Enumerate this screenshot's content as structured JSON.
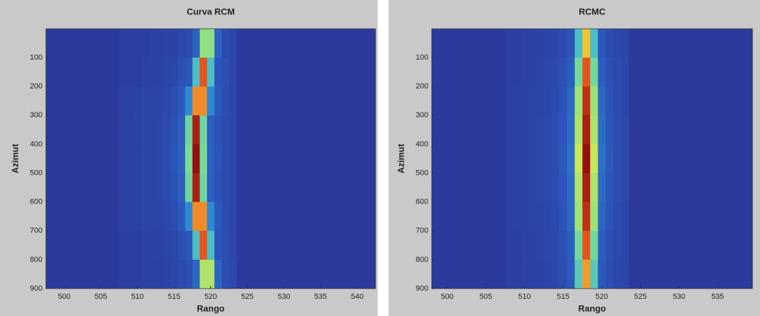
{
  "chart_data": [
    {
      "type": "heatmap",
      "title": "Curva RCM",
      "x_label": "Rango",
      "y_label": "Azimut",
      "xlim": [
        497.5,
        542.5
      ],
      "xticks": [
        500,
        505,
        510,
        515,
        520,
        525,
        530,
        535,
        540
      ],
      "ylim": [
        0,
        900
      ],
      "yticks": [
        100,
        200,
        300,
        400,
        500,
        600,
        700,
        800,
        900
      ],
      "y_inverted": true,
      "x": [
        508,
        509,
        510,
        511,
        512,
        513,
        514,
        515,
        516,
        517,
        518,
        519,
        520,
        521,
        522,
        523
      ],
      "y": [
        50,
        150,
        250,
        350,
        450,
        550,
        650,
        750,
        850
      ],
      "z": [
        [
          2,
          2,
          2,
          2,
          3,
          3,
          4,
          4,
          6,
          8,
          15,
          48,
          48,
          15,
          8,
          6
        ],
        [
          2,
          2,
          2,
          3,
          4,
          4,
          5,
          6,
          10,
          12,
          36,
          80,
          36,
          12,
          10,
          6
        ],
        [
          3,
          3,
          4,
          5,
          5,
          5,
          6,
          9,
          13,
          23,
          72,
          72,
          23,
          13,
          9,
          6
        ],
        [
          3,
          3,
          4,
          5,
          5,
          6,
          8,
          11,
          14,
          43,
          95,
          43,
          14,
          11,
          8,
          6
        ],
        [
          3,
          3,
          4,
          5,
          5,
          6,
          8,
          12,
          15,
          45,
          100,
          45,
          15,
          12,
          8,
          6
        ],
        [
          3,
          3,
          4,
          5,
          5,
          6,
          8,
          11,
          14,
          43,
          95,
          43,
          14,
          11,
          8,
          6
        ],
        [
          3,
          3,
          4,
          5,
          5,
          5,
          6,
          9,
          13,
          23,
          72,
          72,
          23,
          13,
          9,
          6
        ],
        [
          2,
          2,
          2,
          3,
          4,
          4,
          5,
          6,
          10,
          12,
          36,
          80,
          36,
          12,
          10,
          6
        ],
        [
          2,
          2,
          2,
          3,
          3,
          3,
          4,
          5,
          7,
          9,
          16,
          52,
          52,
          16,
          9,
          7
        ]
      ]
    },
    {
      "type": "heatmap",
      "title": "RCMC",
      "x_label": "Rango",
      "y_label": "Azimut",
      "xlim": [
        498,
        539.5
      ],
      "xticks": [
        500,
        505,
        510,
        515,
        520,
        525,
        530,
        535
      ],
      "ylim": [
        0,
        900
      ],
      "yticks": [
        100,
        200,
        300,
        400,
        500,
        600,
        700,
        800,
        900
      ],
      "y_inverted": true,
      "x": [
        508,
        509,
        510,
        511,
        512,
        513,
        514,
        515,
        516,
        517,
        518,
        519,
        520,
        521,
        522,
        523
      ],
      "y": [
        50,
        150,
        250,
        350,
        450,
        550,
        650,
        750,
        850
      ],
      "z": [
        [
          2,
          2,
          3,
          3,
          4,
          5,
          6,
          8,
          12,
          36,
          65,
          36,
          12,
          8,
          6,
          5
        ],
        [
          2,
          2,
          3,
          4,
          5,
          6,
          7,
          10,
          14,
          44,
          80,
          44,
          14,
          10,
          7,
          6
        ],
        [
          3,
          3,
          4,
          5,
          5,
          6,
          8,
          12,
          16,
          50,
          90,
          50,
          16,
          12,
          8,
          6
        ],
        [
          3,
          3,
          4,
          5,
          6,
          7,
          9,
          12,
          17,
          52,
          95,
          52,
          17,
          12,
          9,
          7
        ],
        [
          3,
          3,
          4,
          5,
          6,
          7,
          9,
          13,
          18,
          55,
          100,
          55,
          18,
          13,
          9,
          7
        ],
        [
          3,
          3,
          4,
          5,
          6,
          7,
          9,
          12,
          17,
          52,
          95,
          52,
          17,
          12,
          9,
          7
        ],
        [
          3,
          3,
          4,
          5,
          5,
          6,
          8,
          12,
          16,
          50,
          90,
          50,
          16,
          12,
          8,
          6
        ],
        [
          2,
          2,
          3,
          4,
          5,
          6,
          7,
          10,
          14,
          44,
          80,
          44,
          14,
          10,
          7,
          6
        ],
        [
          2,
          2,
          3,
          4,
          4,
          5,
          6,
          9,
          13,
          39,
          70,
          39,
          13,
          9,
          6,
          5
        ]
      ]
    }
  ]
}
